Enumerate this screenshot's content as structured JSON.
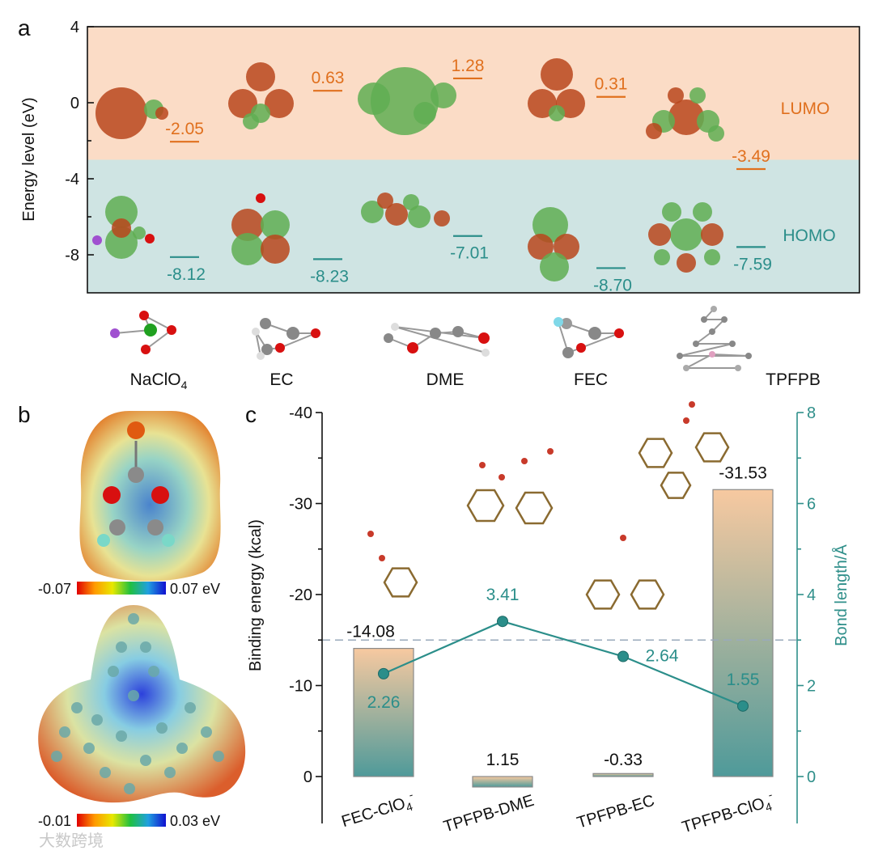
{
  "panels": {
    "a": "a",
    "b": "b",
    "c": "c"
  },
  "colors": {
    "lumo": "#e0701e",
    "homo": "#2b8e8a",
    "lumo_band": "#fbdcc6",
    "homo_band": "#cfe4e3",
    "bar_top": "#f7c9a0",
    "bar_bottom": "#4f9a9a",
    "line": "#2b8e8a"
  },
  "chart_data": [
    {
      "type": "line",
      "ylabel": "Energy level (eV)",
      "ylim": [
        -10,
        4
      ],
      "y_ticks": [
        "4",
        "0",
        "-4",
        "-8"
      ],
      "y_tick_values": [
        4,
        0,
        -4,
        -8
      ],
      "band_split": -3,
      "band_labels": [
        "LUMO",
        "HOMO"
      ],
      "categories": [
        "NaClO4",
        "EC",
        "DME",
        "FEC",
        "TPFPB"
      ],
      "category_labels": [
        {
          "main": "NaClO",
          "sub": "4"
        },
        {
          "main": "EC",
          "sub": ""
        },
        {
          "main": "DME",
          "sub": ""
        },
        {
          "main": "FEC",
          "sub": ""
        },
        {
          "main": "TPFPB",
          "sub": ""
        }
      ],
      "lumo": [
        -2.05,
        0.63,
        1.28,
        0.31,
        -3.49
      ],
      "lumo_text": [
        "-2.05",
        "0.63",
        "1.28",
        "0.31",
        "-3.49"
      ],
      "homo": [
        -8.12,
        -8.23,
        -7.01,
        -8.7,
        -7.59
      ],
      "homo_text": [
        "-8.12",
        "-8.23",
        "-7.01",
        "-8.70",
        "-7.59"
      ]
    },
    {
      "type": "heatmap",
      "colorbars": [
        {
          "min_label": "-0.07",
          "max_label": "0.07 eV"
        },
        {
          "min_label": "-0.01",
          "max_label": "0.03 eV"
        }
      ]
    },
    {
      "type": "bar",
      "ylabel": "Binding energy (kcal)",
      "y2label": "Bond length/Å",
      "ylim": [
        0,
        -40
      ],
      "y_ticks": [
        "-40",
        "-30",
        "-20",
        "-10",
        "0"
      ],
      "y_tick_values": [
        -40,
        -30,
        -20,
        -10,
        0
      ],
      "y2lim": [
        0,
        8
      ],
      "y2_ticks": [
        "8",
        "6",
        "4",
        "2",
        "0"
      ],
      "y2_tick_values": [
        8,
        6,
        4,
        2,
        0
      ],
      "categories": [
        {
          "main": "FEC-ClO",
          "sub": "4",
          "sup": "-"
        },
        {
          "main": "TPFPB-DME",
          "sub": "",
          "sup": ""
        },
        {
          "main": "TPFPB-EC",
          "sub": "",
          "sup": ""
        },
        {
          "main": "TPFPB-ClO",
          "sub": "4",
          "sup": "-"
        }
      ],
      "binding_energy": [
        -14.08,
        1.15,
        -0.33,
        -31.53
      ],
      "binding_energy_text": [
        "-14.08",
        "1.15",
        "-0.33",
        "-31.53"
      ],
      "bond_length": [
        2.26,
        3.41,
        2.64,
        1.55
      ],
      "bond_length_text": [
        "2.26",
        "3.41",
        "2.64",
        "1.55"
      ],
      "reference_line_y2": 3
    }
  ],
  "watermark": "大数跨境"
}
